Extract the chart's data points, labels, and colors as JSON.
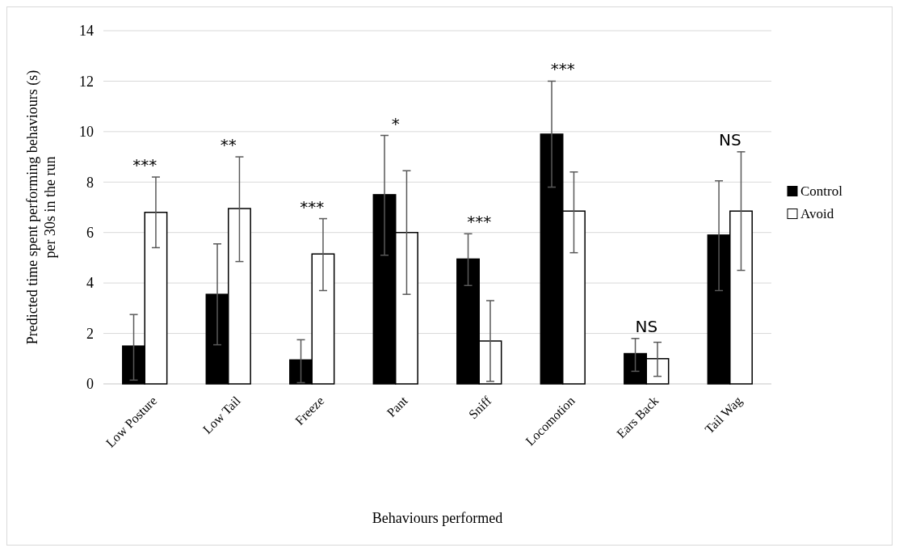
{
  "chart_data": {
    "type": "bar",
    "xlabel": "Behaviours performed",
    "ylabel": "Predicted time spent performing behaviours (s) per 30s in the run",
    "categories": [
      "Low Posture",
      "Low Tail",
      "Freeze",
      "Pant",
      "Sniff",
      "Locomotion",
      "Ears Back",
      "Tail Wag"
    ],
    "series": [
      {
        "name": "Control",
        "color": "#000000",
        "values": [
          1.5,
          3.55,
          0.95,
          7.5,
          4.95,
          9.9,
          1.2,
          5.9
        ],
        "errors": [
          [
            0.15,
            2.75
          ],
          [
            1.55,
            5.55
          ],
          [
            0.05,
            1.75
          ],
          [
            5.1,
            9.85
          ],
          [
            3.9,
            5.95
          ],
          [
            7.8,
            12.0
          ],
          [
            0.5,
            1.8
          ],
          [
            3.7,
            8.05
          ]
        ]
      },
      {
        "name": "Avoid",
        "color": "#ffffff",
        "values": [
          6.8,
          6.95,
          5.15,
          6.0,
          1.7,
          6.85,
          1.0,
          6.85
        ],
        "errors": [
          [
            5.4,
            8.2
          ],
          [
            4.85,
            9.0
          ],
          [
            3.7,
            6.55
          ],
          [
            3.55,
            8.45
          ],
          [
            0.1,
            3.3
          ],
          [
            5.2,
            8.4
          ],
          [
            0.3,
            1.65
          ],
          [
            4.5,
            9.2
          ]
        ]
      }
    ],
    "ylim": [
      0,
      14
    ],
    "yticks": [
      0,
      2,
      4,
      6,
      8,
      10,
      12,
      14
    ],
    "grid": "y",
    "legend": "right",
    "annotations": [
      "***",
      "**",
      "***",
      "*",
      "***",
      "***",
      "NS",
      "NS"
    ]
  }
}
